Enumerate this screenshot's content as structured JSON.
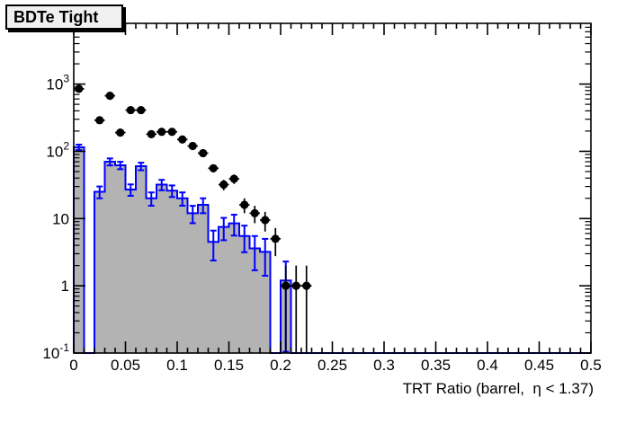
{
  "title_box": {
    "label": "BDTe Tight"
  },
  "colors": {
    "background": "#ffffff",
    "frame": "#000000",
    "histogram_fill": "#b3b3b3",
    "histogram_line": "#0000ff",
    "marker": "#000000",
    "title_box_bg": "#f0f0f0"
  },
  "chart_data": {
    "type": "bar",
    "subtype": "log-histogram-with-points",
    "title": "BDTe Tight",
    "xlabel": "TRT Ratio (barrel,  η < 1.37)",
    "ylabel": "",
    "x_axis": {
      "min": 0,
      "max": 0.5,
      "major_tick_step": 0.05,
      "minor_tick_step": 0.01,
      "tick_labels": [
        "0",
        "0.05",
        "0.1",
        "0.15",
        "0.2",
        "0.25",
        "0.3",
        "0.35",
        "0.4",
        "0.45",
        "0.5"
      ],
      "tick_values": [
        0,
        0.05,
        0.1,
        0.15,
        0.2,
        0.25,
        0.3,
        0.35,
        0.4,
        0.45,
        0.5
      ]
    },
    "y_axis": {
      "scale": "log",
      "min": 0.1,
      "max": 8000,
      "tick_labels": [
        {
          "main": "10",
          "exp": "-1",
          "value": 0.1
        },
        {
          "main": "1",
          "exp": "",
          "value": 1
        },
        {
          "main": "10",
          "exp": "",
          "value": 10
        },
        {
          "main": "10",
          "exp": "2",
          "value": 100
        },
        {
          "main": "10",
          "exp": "3",
          "value": 1000
        }
      ]
    },
    "bin_width": 0.01,
    "grid": false,
    "legend": "none",
    "series": [
      {
        "name": "shaded-histogram",
        "type": "step-histogram",
        "line_color": "#0000ff",
        "fill_color": "#b3b3b3",
        "error_bars": "sqrt",
        "first_bin_center": 0.005,
        "values": [
          115,
          0,
          25,
          70,
          62,
          27,
          60,
          20,
          32,
          26,
          20,
          12,
          16,
          4.5,
          7.5,
          8.5,
          5.5,
          3.6,
          3.2,
          0,
          1.2,
          0
        ]
      },
      {
        "name": "data-points",
        "type": "scatter",
        "marker": "filled-circle",
        "color": "#000000",
        "error_bars": "sqrt",
        "x": [
          0.005,
          0.025,
          0.035,
          0.045,
          0.055,
          0.065,
          0.075,
          0.085,
          0.095,
          0.105,
          0.115,
          0.125,
          0.135,
          0.145,
          0.155,
          0.165,
          0.175,
          0.185,
          0.195,
          0.205,
          0.215,
          0.225
        ],
        "y": [
          850,
          290,
          670,
          190,
          410,
          410,
          180,
          195,
          195,
          150,
          120,
          94,
          56,
          32,
          39,
          16,
          12,
          9.5,
          5,
          1,
          1,
          1
        ]
      }
    ]
  }
}
